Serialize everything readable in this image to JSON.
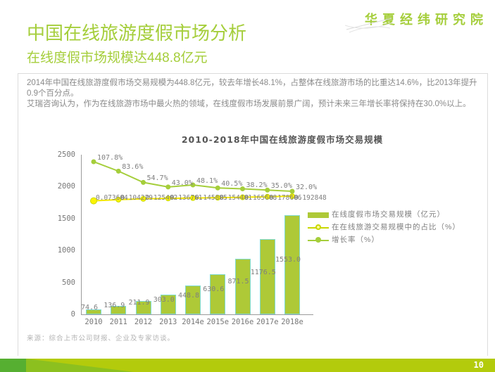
{
  "header": {
    "logo": "华夏经纬研究院",
    "title": "中国在线旅游度假市场分析",
    "subtitle": "在线度假市场规模达448.8亿元"
  },
  "body": {
    "p1": "2014年中国在线旅游度假市场交易规模为448.8亿元，较去年增长48.1%，占整体在线旅游市场的比重达14.6%，比2013年提升0.9个百分点。",
    "p2": "艾瑞咨询认为，作为在线旅游市场中最火热的领域，在线度假市场发展前景广阔，预计未来三年增长率将保持在30.0%以上。"
  },
  "chart_data": {
    "type": "bar",
    "title": "2010-2018年中国在线旅游度假市场交易规模",
    "categories": [
      "2010",
      "2011",
      "2012",
      "2013",
      "2014e",
      "2015e",
      "2016e",
      "2017e",
      "2018e"
    ],
    "series": [
      {
        "name": "在线度假市场交易规模（亿元）",
        "type": "bar",
        "values": [
          74.6,
          136.9,
          211.9,
          303.0,
          448.8,
          630.6,
          871.5,
          1176.5,
          1553.0
        ],
        "labels": [
          "74.6",
          "136.9",
          "211.9",
          "303.0",
          "448.8",
          "630.6",
          "871.5",
          "1176.5",
          "1553.0"
        ]
      },
      {
        "name": "在在线旅游交易规模中的占比（%）",
        "type": "line",
        "values": [
          0.073604,
          0.104229,
          0.125402,
          0.136761,
          0.145885,
          0.154401,
          0.165608,
          0.178606,
          0.192848
        ],
        "labels": [
          "0.073604",
          "0.104229",
          "0.125402",
          "0.136761",
          "0.145885",
          "0.154401",
          "0.165608",
          "0.178606",
          "0.192848"
        ]
      },
      {
        "name": "增长率（%）",
        "type": "line",
        "values": [
          107.8,
          83.6,
          54.7,
          43.0,
          48.1,
          40.5,
          38.2,
          35.0,
          32.0
        ],
        "labels": [
          "107.8%",
          "83.6%",
          "54.7%",
          "43.0%",
          "48.1%",
          "40.5%",
          "38.2%",
          "35.0%",
          "32.0%"
        ]
      }
    ],
    "xlabel": "",
    "ylabel": "",
    "ylim": [
      0,
      2500
    ],
    "y_ticks": [
      "0",
      "500",
      "1000",
      "1500",
      "2000",
      "2500"
    ],
    "grid": false,
    "legend_position": "right"
  },
  "legend": [
    {
      "label": "在线度假市场交易规模（亿元）",
      "marker": "bar-swatch"
    },
    {
      "label": "在在线旅游交易规模中的占比（%）",
      "marker": "line-hollow-circle"
    },
    {
      "label": "增长率（%）",
      "marker": "line-filled-circle"
    }
  ],
  "source": "来源：综合上市公司财报、企业及专家访谈。",
  "footer": {
    "page_number": "10"
  },
  "colors": {
    "accent_green": "#A5CE3B",
    "bar_fill": "#AEC937",
    "bar_border": "#7EDAD0",
    "line_yellow": "#F2E600",
    "yellow_marker_fill": "#FBF303",
    "yellow_marker_stroke": "#C9D800",
    "footer_bar": "#B3CB0C",
    "footer_dark_green": "#56AF31",
    "footer_mid_green": "#8CC01F",
    "text_gray": "#808080"
  }
}
